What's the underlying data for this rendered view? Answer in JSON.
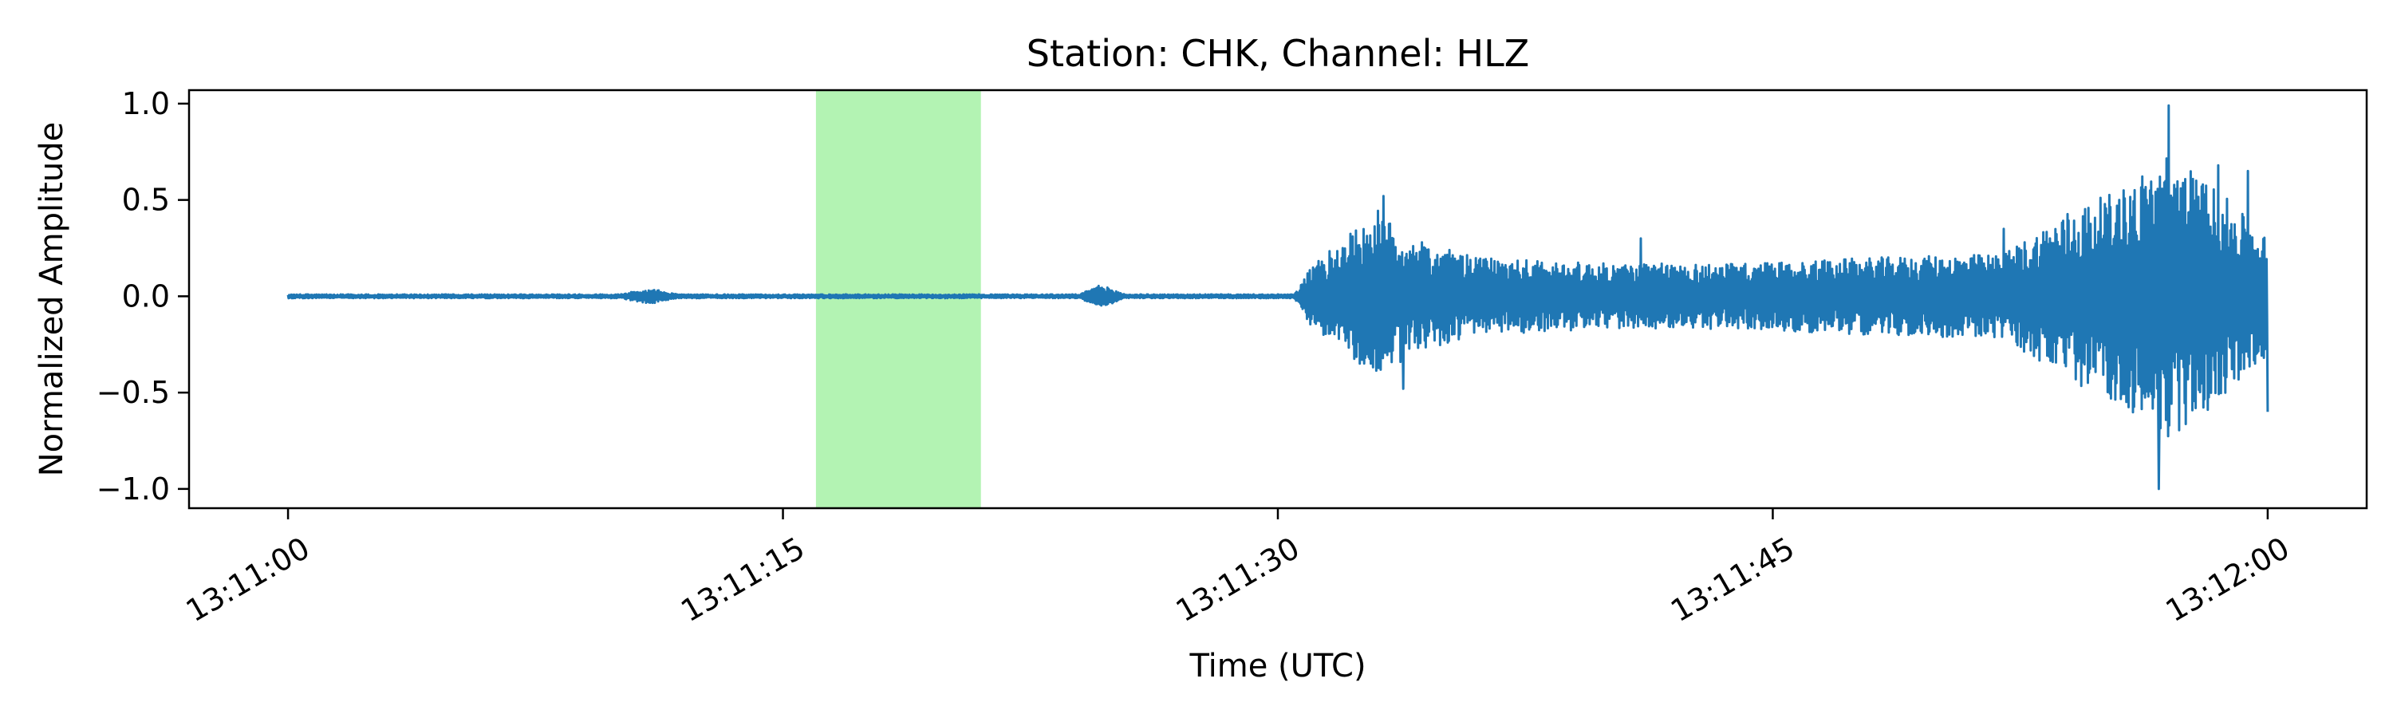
{
  "chart_data": {
    "type": "line",
    "title": "Station: CHK, Channel: HLZ",
    "xlabel": "Time (UTC)",
    "ylabel": "Normalized Amplitude",
    "x_unit": "seconds after 13:11:00",
    "xlim": [
      -3,
      63
    ],
    "ylim": [
      -1.1,
      1.07
    ],
    "x_ticks": [
      {
        "value": 0,
        "label": "13:11:00"
      },
      {
        "value": 15,
        "label": "13:11:15"
      },
      {
        "value": 30,
        "label": "13:11:30"
      },
      {
        "value": 45,
        "label": "13:11:45"
      },
      {
        "value": 60,
        "label": "13:12:00"
      }
    ],
    "y_ticks": [
      {
        "value": 1.0,
        "label": "1.0"
      },
      {
        "value": 0.5,
        "label": "0.5"
      },
      {
        "value": 0.0,
        "label": "0.0"
      },
      {
        "value": -0.5,
        "label": "−0.5"
      },
      {
        "value": -1.0,
        "label": "−1.0"
      }
    ],
    "highlight_window": {
      "x_start": 16.0,
      "x_end": 21.0,
      "color": "#b3f3b3"
    },
    "series": [
      {
        "name": "HLZ waveform",
        "color": "#1f77b4",
        "envelope": [
          [
            0,
            0.01
          ],
          [
            10,
            0.01
          ],
          [
            11,
            0.04
          ],
          [
            11.8,
            0.01
          ],
          [
            24,
            0.01
          ],
          [
            24.6,
            0.06
          ],
          [
            25.4,
            0.01
          ],
          [
            30.5,
            0.01
          ],
          [
            31,
            0.15
          ],
          [
            32,
            0.3
          ],
          [
            33,
            0.45
          ],
          [
            34,
            0.3
          ],
          [
            36,
            0.2
          ],
          [
            40,
            0.17
          ],
          [
            44,
            0.17
          ],
          [
            48,
            0.2
          ],
          [
            52,
            0.22
          ],
          [
            54,
            0.45
          ],
          [
            55.5,
            0.55
          ],
          [
            57,
            0.75
          ],
          [
            58.5,
            0.55
          ],
          [
            60,
            0.3
          ]
        ],
        "peaks": [
          {
            "x": 33.2,
            "y": 0.52
          },
          {
            "x": 33.8,
            "y": -0.48
          },
          {
            "x": 41.0,
            "y": 0.3
          },
          {
            "x": 52.0,
            "y": 0.35
          },
          {
            "x": 55.5,
            "y": 0.5
          },
          {
            "x": 57.0,
            "y": 0.99
          },
          {
            "x": 56.7,
            "y": -1.0
          },
          {
            "x": 58.5,
            "y": 0.68
          },
          {
            "x": 59.4,
            "y": 0.65
          },
          {
            "x": 60.0,
            "y": -0.6
          }
        ]
      }
    ]
  }
}
